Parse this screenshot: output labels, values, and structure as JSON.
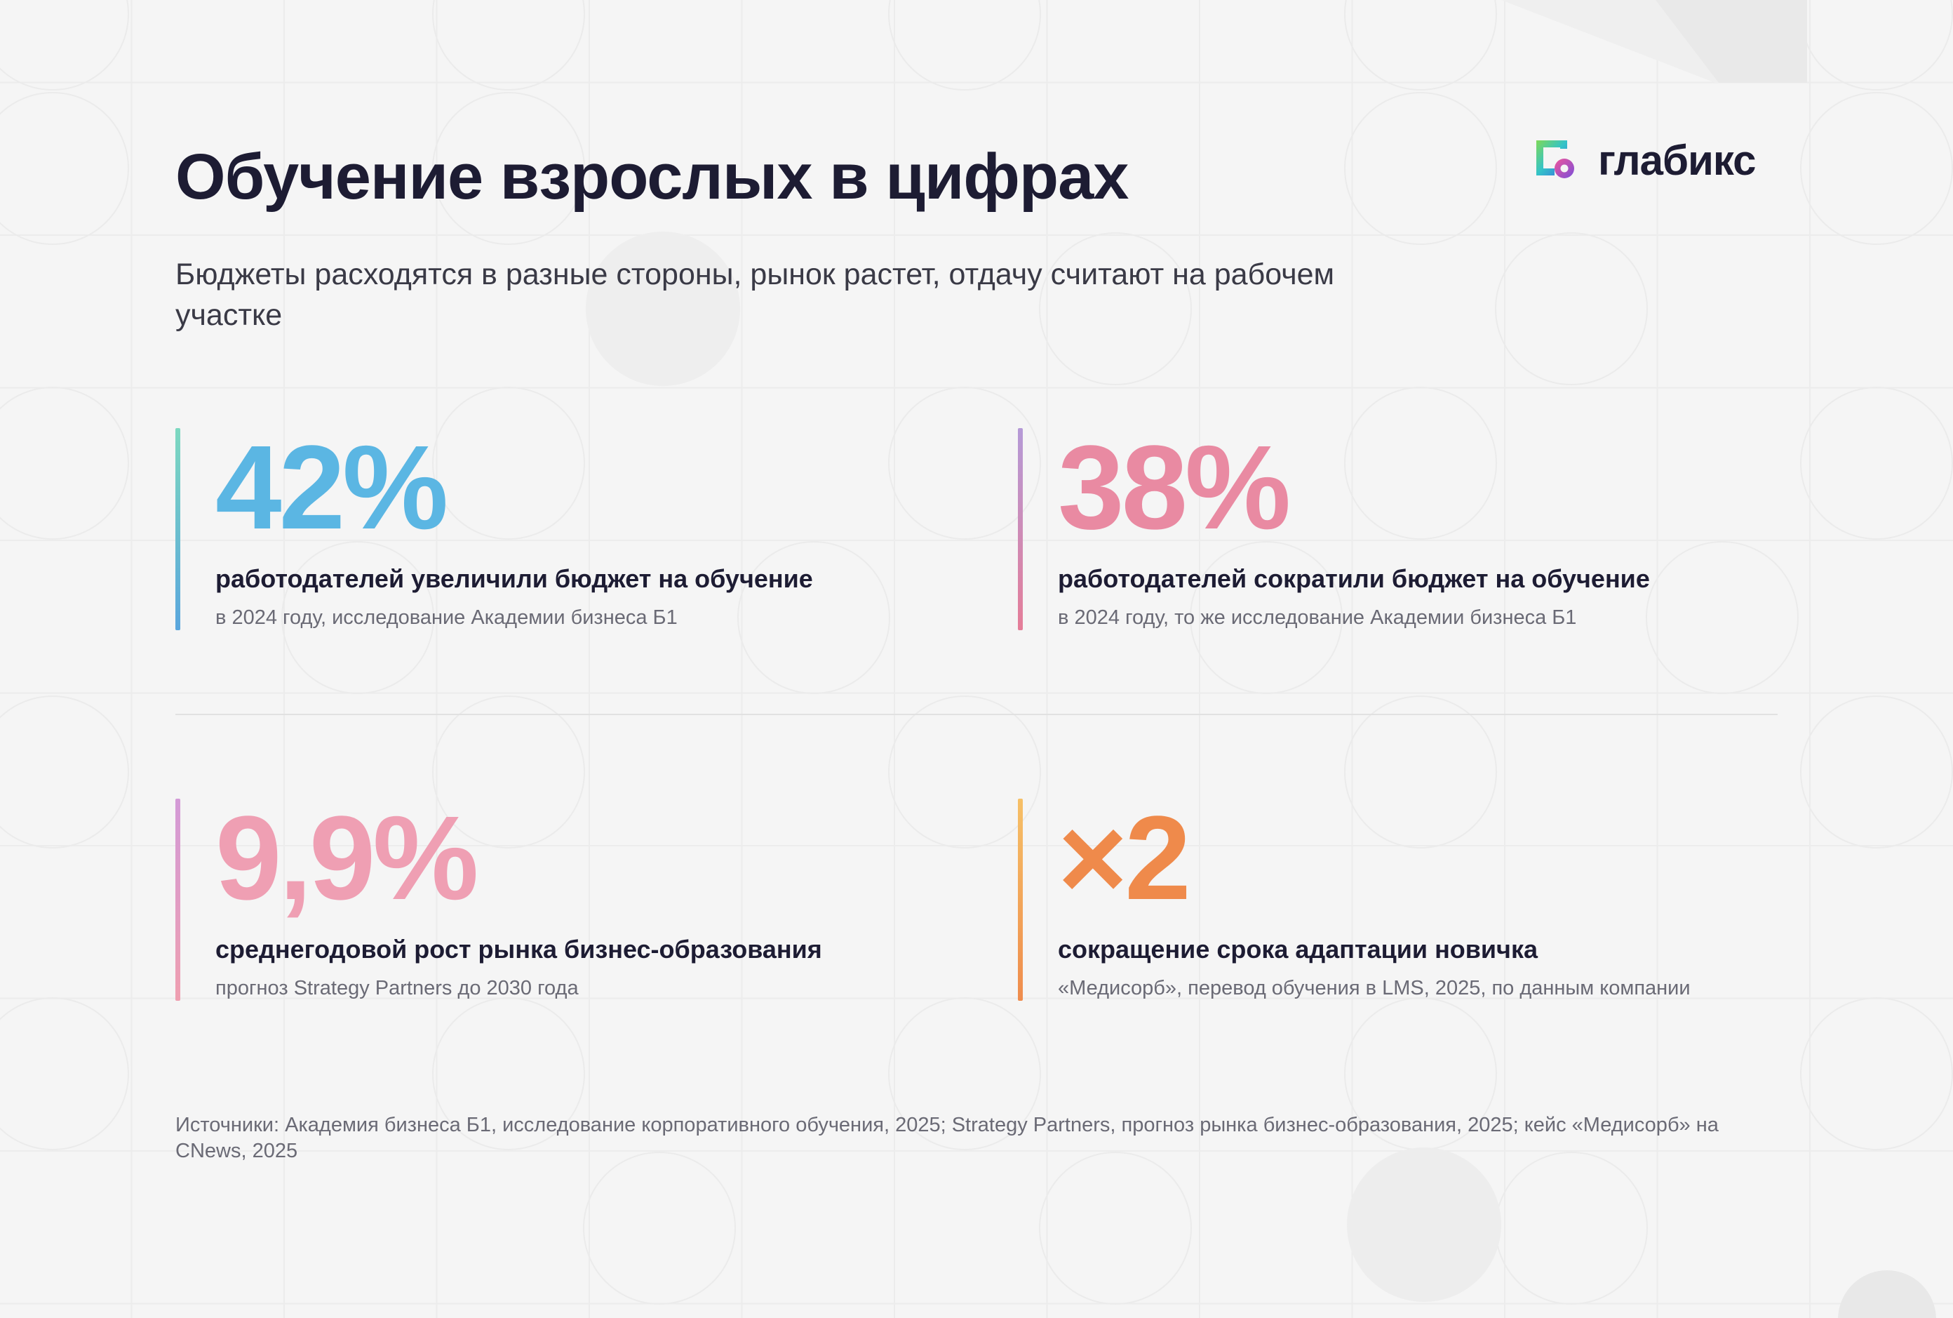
{
  "header": {
    "title": "Обучение взрослых в цифрах",
    "subtitle": "Бюджеты расходятся в разные стороны, рынок растет, отдачу считают на рабочем участке"
  },
  "brand": {
    "name": "глабикс",
    "logo_icon": "glabix-logo-icon"
  },
  "stats": [
    {
      "value": "42%",
      "label": "работодателей увеличили бюджет на обучение",
      "note": "в 2024 году, исследование Академии бизнеса Б1",
      "color": "#5bb6e3"
    },
    {
      "value": "38%",
      "label": "работодателей сократили бюджет на обучение",
      "note": "в 2024 году, то же исследование Академии бизнеса Б1",
      "color": "#e98aa2"
    },
    {
      "value": "9,9%",
      "label": "среднегодовой рост рынка бизнес-образования",
      "note": "прогноз Strategy Partners до 2030 года",
      "color": "#ef9fb3"
    },
    {
      "value": "×2",
      "label": "сокращение срока адаптации новичка",
      "note": "«Медисорб», перевод обучения в LMS, 2025, по данным компании",
      "color": "#ef8a4b"
    }
  ],
  "footer": {
    "sources": "Источники: Академия бизнеса Б1, исследование корпоративного обучения, 2025; Strategy Partners, прогноз рынка бизнес-образования, 2025; кейс «Медисорб» на CNews, 2025"
  }
}
